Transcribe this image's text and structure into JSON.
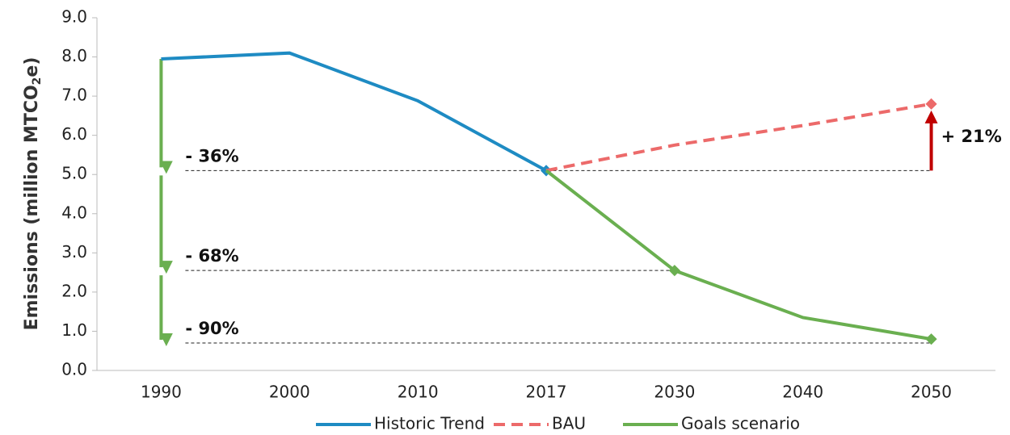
{
  "chart_data": {
    "type": "line",
    "y_label_parts": [
      "Emissions (million MTCO",
      "2",
      "e)"
    ],
    "categories": [
      "1990",
      "2000",
      "2010",
      "2017",
      "2030",
      "2040",
      "2050"
    ],
    "series": [
      {
        "name": "Historic Trend",
        "color": "#1e8bc3",
        "dash": false,
        "values": [
          7.95,
          8.1,
          6.88,
          5.1,
          null,
          null,
          null
        ]
      },
      {
        "name": "BAU",
        "color": "#ec6a6a",
        "dash": true,
        "values": [
          null,
          null,
          null,
          5.1,
          5.75,
          6.25,
          6.8
        ]
      },
      {
        "name": "Goals scenario",
        "color": "#6aaf50",
        "dash": false,
        "values": [
          null,
          null,
          null,
          5.1,
          2.55,
          1.35,
          0.8
        ]
      }
    ],
    "ylim": [
      0,
      9
    ],
    "yticks": [
      {
        "value": 0,
        "label": "0.0"
      },
      {
        "value": 1,
        "label": "1.0"
      },
      {
        "value": 2,
        "label": "2.0"
      },
      {
        "value": 3,
        "label": "3.0"
      },
      {
        "value": 4,
        "label": "4.0"
      },
      {
        "value": 5,
        "label": "5.0"
      },
      {
        "value": 6,
        "label": "6.0"
      },
      {
        "value": 7,
        "label": "7.0"
      },
      {
        "value": 8,
        "label": "8.0"
      },
      {
        "value": 9,
        "label": "9.0"
      }
    ],
    "annotations": [
      {
        "text": "- 36%",
        "y": 5.1
      },
      {
        "text": "- 68%",
        "y": 2.55
      },
      {
        "text": "- 90%",
        "y": 0.7
      },
      {
        "text": "+ 21%",
        "y": 6.8
      }
    ],
    "legend": "bottom"
  }
}
